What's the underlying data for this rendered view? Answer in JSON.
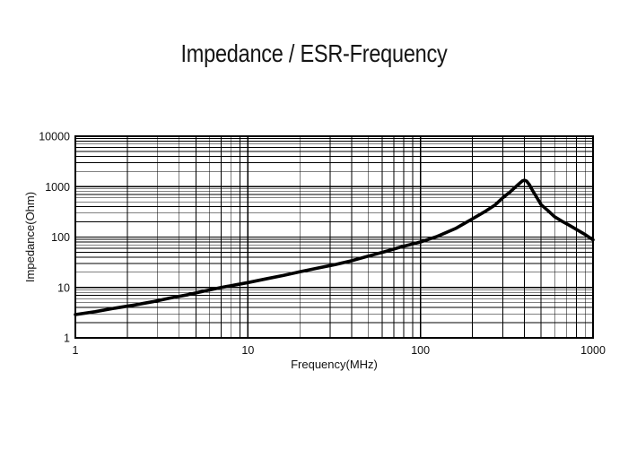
{
  "title": "Impedance / ESR-Frequency",
  "chart_data": {
    "type": "line",
    "title": "Impedance / ESR-Frequency",
    "xlabel": "Frequency(MHz)",
    "ylabel": "Impedance(Ohm)",
    "x_scale": "log",
    "y_scale": "log",
    "xlim": [
      1,
      1000
    ],
    "ylim": [
      1,
      10000
    ],
    "x_ticks": [
      "1",
      "10",
      "100",
      "1000"
    ],
    "y_ticks": [
      "1",
      "10",
      "100",
      "1000",
      "10000"
    ],
    "grid": "log major and minor, black on white",
    "legend": "none",
    "line_color": "#000000",
    "series": [
      {
        "name": "Impedance",
        "points": [
          [
            1,
            2.9
          ],
          [
            1.3,
            3.3
          ],
          [
            1.7,
            3.9
          ],
          [
            2.2,
            4.5
          ],
          [
            2.8,
            5.2
          ],
          [
            3.5,
            6.1
          ],
          [
            4.5,
            7.2
          ],
          [
            5.6,
            8.5
          ],
          [
            7,
            10
          ],
          [
            8.5,
            11.3
          ],
          [
            10,
            12.5
          ],
          [
            13,
            15
          ],
          [
            16,
            17.3
          ],
          [
            20,
            20.5
          ],
          [
            25,
            24
          ],
          [
            32,
            28.5
          ],
          [
            40,
            34
          ],
          [
            50,
            42
          ],
          [
            63,
            52
          ],
          [
            80,
            66
          ],
          [
            100,
            80
          ],
          [
            125,
            103
          ],
          [
            160,
            148
          ],
          [
            200,
            230
          ],
          [
            240,
            330
          ],
          [
            270,
            430
          ],
          [
            300,
            600
          ],
          [
            330,
            780
          ],
          [
            355,
            980
          ],
          [
            375,
            1160
          ],
          [
            390,
            1300
          ],
          [
            400,
            1340
          ],
          [
            412,
            1290
          ],
          [
            428,
            1090
          ],
          [
            450,
            800
          ],
          [
            475,
            590
          ],
          [
            500,
            440
          ],
          [
            550,
            330
          ],
          [
            600,
            252
          ],
          [
            660,
            206
          ],
          [
            720,
            175
          ],
          [
            800,
            142
          ],
          [
            900,
            112
          ],
          [
            1000,
            88
          ]
        ]
      }
    ]
  }
}
